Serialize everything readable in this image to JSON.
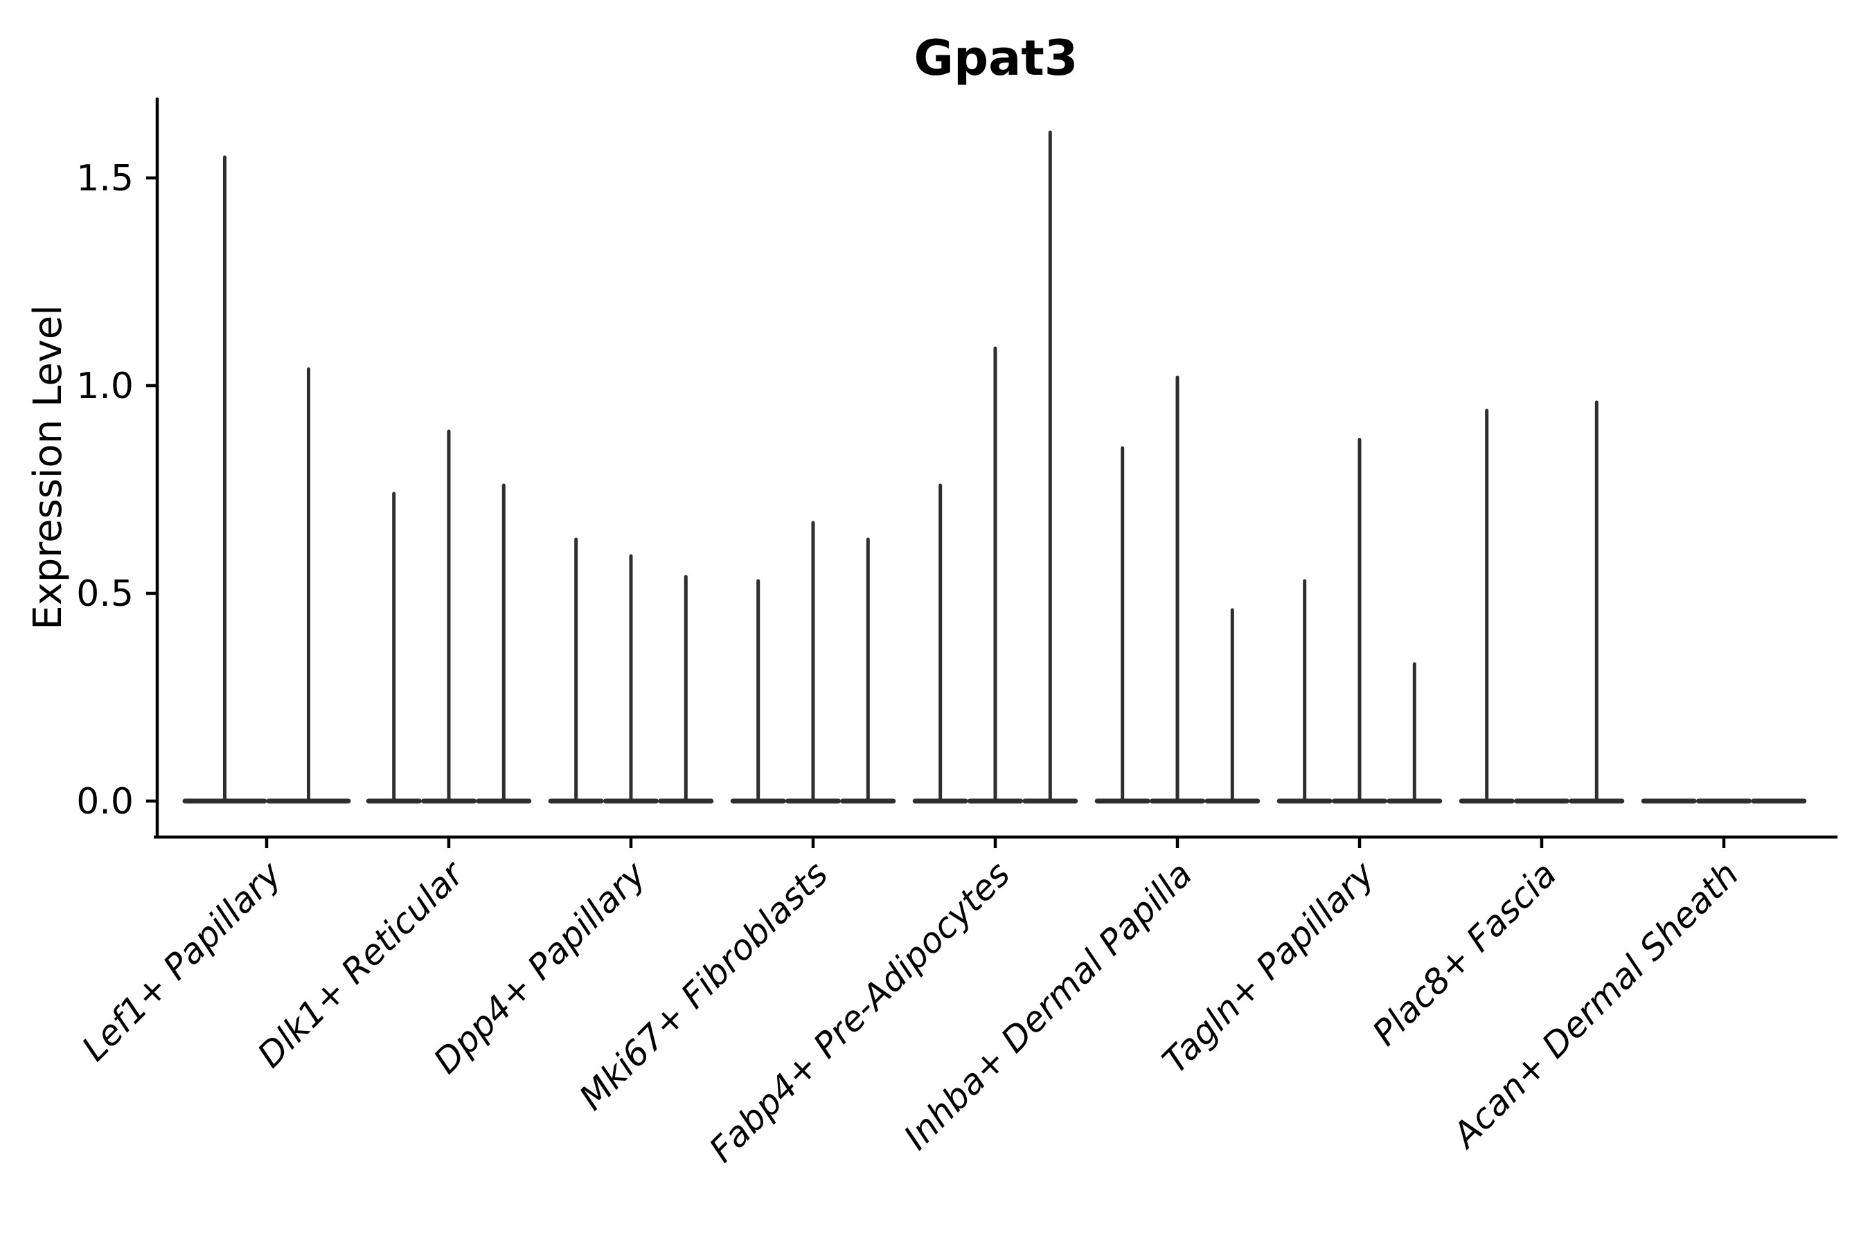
{
  "chart_data": {
    "type": "violin",
    "title": "Gpat3",
    "xlabel": "",
    "ylabel": "Expression Level",
    "grid": false,
    "legend_position": "none",
    "background_color": "#ffffff",
    "violin_color": "#2e2e2e",
    "axis_color": "#000000",
    "violin_style": "collapsed-at-zero-with-max-spike",
    "ylim": [
      -0.087,
      1.69
    ],
    "yticks": [
      {
        "value": 0.0,
        "label": "0.0"
      },
      {
        "value": 0.5,
        "label": "0.5"
      },
      {
        "value": 1.0,
        "label": "1.0"
      },
      {
        "value": 1.5,
        "label": "1.5"
      }
    ],
    "categories": [
      "Lef1+ Papillary",
      "Dlk1+ Reticular",
      "Dpp4+ Papillary",
      "Mki67+ Fibroblasts",
      "Fabp4+ Pre-Adipocytes",
      "Inhba+ Dermal Papilla",
      "Tagln+ Papillary",
      "Plac8+ Fascia",
      "Acan+ Dermal Sheath"
    ],
    "groups": [
      {
        "category": "Lef1+ Papillary",
        "spike_maxima": [
          1.55,
          1.04
        ]
      },
      {
        "category": "Dlk1+ Reticular",
        "spike_maxima": [
          0.74,
          0.89,
          0.76
        ]
      },
      {
        "category": "Dpp4+ Papillary",
        "spike_maxima": [
          0.63,
          0.59,
          0.54
        ]
      },
      {
        "category": "Mki67+ Fibroblasts",
        "spike_maxima": [
          0.53,
          0.67,
          0.63
        ]
      },
      {
        "category": "Fabp4+ Pre-Adipocytes",
        "spike_maxima": [
          0.76,
          1.09,
          1.61
        ]
      },
      {
        "category": "Inhba+ Dermal Papilla",
        "spike_maxima": [
          0.85,
          1.02,
          0.46
        ]
      },
      {
        "category": "Tagln+ Papillary",
        "spike_maxima": [
          0.53,
          0.87,
          0.33
        ]
      },
      {
        "category": "Plac8+ Fascia",
        "spike_maxima": [
          0.94,
          0.0,
          0.96
        ]
      },
      {
        "category": "Acan+ Dermal Sheath",
        "spike_maxima": [
          0.0,
          0.0,
          0.0
        ]
      }
    ]
  }
}
